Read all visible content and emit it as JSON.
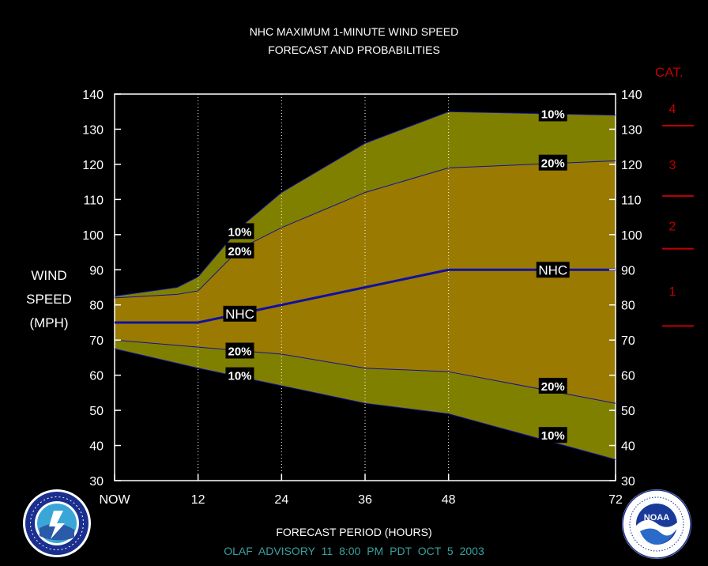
{
  "title_line1": "NHC MAXIMUM 1-MINUTE WIND SPEED",
  "title_line2": "FORECAST AND PROBABILITIES",
  "ylabel_lines": [
    "WIND",
    "SPEED",
    "(MPH)"
  ],
  "xlabel": "FORECAST PERIOD (HOURS)",
  "advisory": "OLAF   ADVISORY  11 8:00  PM  PDT  OCT  5  2003",
  "category_header": "CAT.",
  "logos": {
    "left": "nws-logo",
    "right": "noaa-logo",
    "noaa_text": "NOAA"
  },
  "colors": {
    "background": "#000000",
    "outer_band": "#808000",
    "inner_band": "#9a7a00",
    "nhc_line": "#1010a0",
    "category": "#c00000",
    "advisory_text": "#3aa0a0"
  },
  "chart_data": {
    "type": "area",
    "x_ticks": [
      {
        "x": 0,
        "label": "NOW"
      },
      {
        "x": 12,
        "label": "12"
      },
      {
        "x": 24,
        "label": "24"
      },
      {
        "x": 36,
        "label": "36"
      },
      {
        "x": 48,
        "label": "48"
      },
      {
        "x": 72,
        "label": "72"
      }
    ],
    "y_ticks": [
      30,
      40,
      50,
      60,
      70,
      80,
      90,
      100,
      110,
      120,
      130,
      140
    ],
    "xlim": [
      0,
      72
    ],
    "ylim": [
      30,
      140
    ],
    "grid": "vertical dotted at 12, 24, 36, 48",
    "series": [
      {
        "name": "10%",
        "band": "upper",
        "x": [
          0,
          9,
          12,
          18,
          24,
          36,
          48,
          72
        ],
        "values": [
          82.5,
          85,
          88,
          102,
          112,
          126,
          135,
          134
        ]
      },
      {
        "name": "20%",
        "band": "upper",
        "x": [
          0,
          9,
          12,
          18,
          24,
          36,
          48,
          72
        ],
        "values": [
          82,
          83,
          84,
          96,
          102,
          112,
          119,
          121
        ]
      },
      {
        "name": "NHC",
        "band": "center",
        "x": [
          0,
          12,
          24,
          36,
          48,
          72
        ],
        "values": [
          75,
          75,
          80,
          85,
          90,
          90
        ]
      },
      {
        "name": "20%",
        "band": "lower",
        "x": [
          0,
          12,
          24,
          36,
          48,
          72
        ],
        "values": [
          70,
          68,
          66,
          62,
          61,
          52
        ]
      },
      {
        "name": "10%",
        "band": "lower",
        "x": [
          0,
          12,
          24,
          36,
          48,
          72
        ],
        "values": [
          67.5,
          62,
          57,
          52,
          49,
          36
        ]
      }
    ],
    "line_labels": [
      {
        "text": "10%",
        "x": 63,
        "y": 134.5
      },
      {
        "text": "20%",
        "x": 63,
        "y": 120.5
      },
      {
        "text": "10%",
        "x": 18,
        "y": 101
      },
      {
        "text": "20%",
        "x": 18,
        "y": 95.5
      },
      {
        "text": "NHC",
        "x": 63,
        "y": 90
      },
      {
        "text": "NHC",
        "x": 18,
        "y": 77.5
      },
      {
        "text": "20%",
        "x": 18,
        "y": 67
      },
      {
        "text": "10%",
        "x": 18,
        "y": 60
      },
      {
        "text": "20%",
        "x": 63,
        "y": 57
      },
      {
        "text": "10%",
        "x": 63,
        "y": 43
      }
    ],
    "categories": [
      {
        "label": "4",
        "label_y": 136
      },
      {
        "label": "3",
        "label_y": 120
      },
      {
        "label": "2",
        "label_y": 102.5
      },
      {
        "label": "1",
        "label_y": 84
      }
    ],
    "category_thresholds": [
      131,
      111,
      96,
      74
    ]
  }
}
